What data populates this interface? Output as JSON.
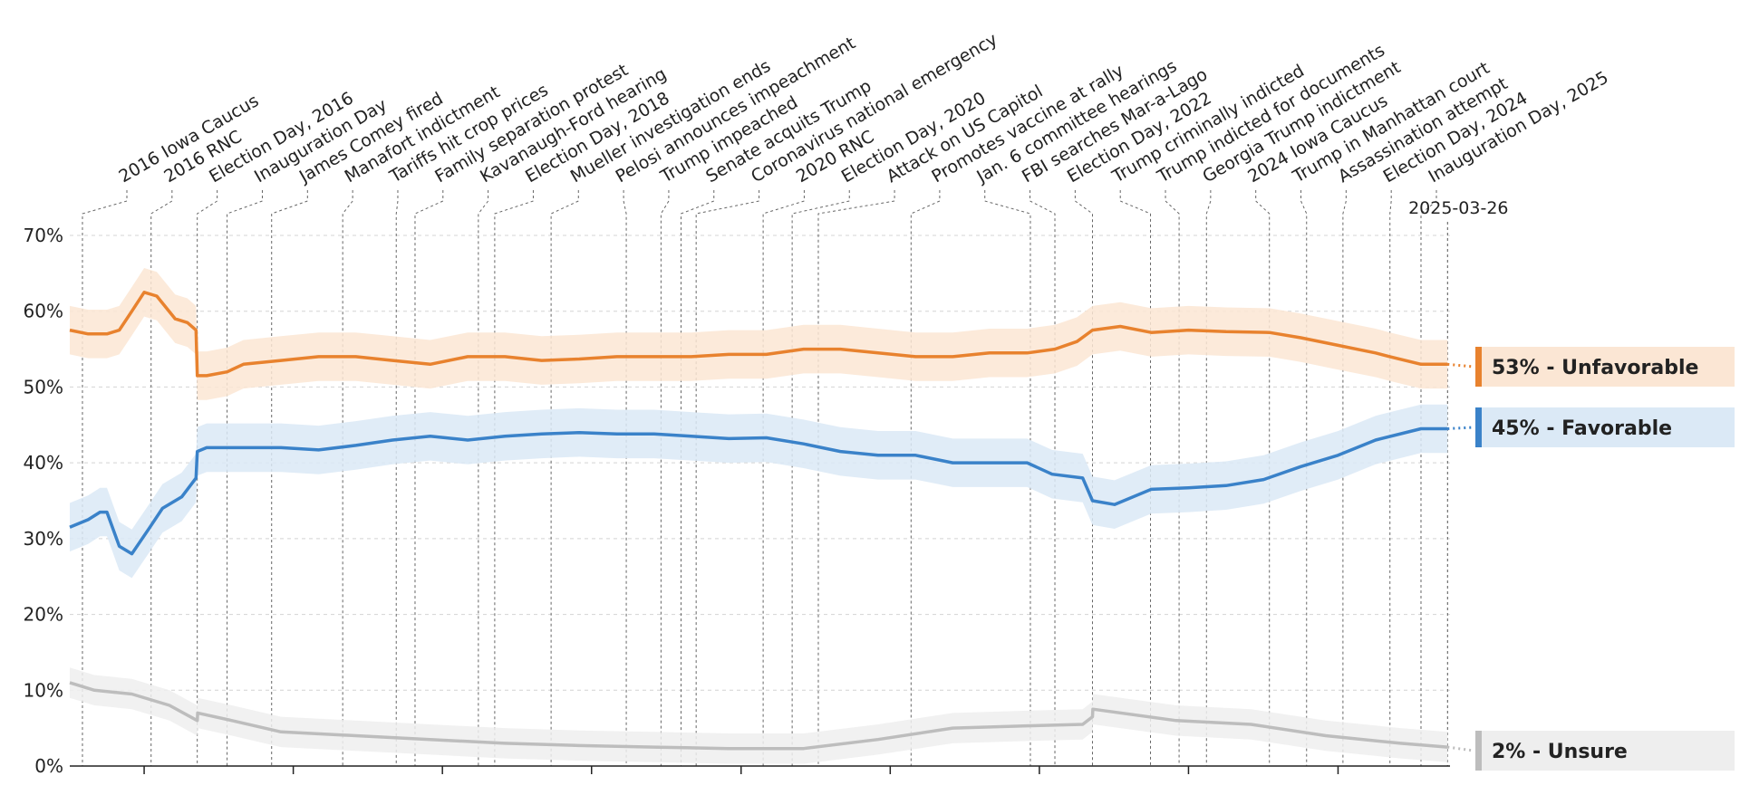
{
  "chart_data": {
    "type": "line",
    "title": "",
    "xlabel": "",
    "ylabel": "",
    "x_range": [
      "2016-01-01",
      "2025-04-01"
    ],
    "ylim": [
      0,
      70
    ],
    "y_ticks": [
      "0%",
      "10%",
      "20%",
      "30%",
      "40%",
      "50%",
      "60%",
      "70%"
    ],
    "grid": "horizontal dashed",
    "current_date": "2025-03-26",
    "series": [
      {
        "key": "unfavorable",
        "color": "#e8822e",
        "band_color": "#fbe6d4",
        "end_label": "53% - Unfavorable",
        "points": [
          [
            "2016-01-01",
            57.5
          ],
          [
            "2016-02-15",
            57
          ],
          [
            "2016-04-01",
            57
          ],
          [
            "2016-05-01",
            57.5
          ],
          [
            "2016-06-01",
            60
          ],
          [
            "2016-07-01",
            62.5
          ],
          [
            "2016-08-01",
            62
          ],
          [
            "2016-09-15",
            59
          ],
          [
            "2016-10-15",
            58.5
          ],
          [
            "2016-11-05",
            57.5
          ],
          [
            "2016-11-08",
            51.5
          ],
          [
            "2016-12-01",
            51.5
          ],
          [
            "2017-01-20",
            52
          ],
          [
            "2017-03-01",
            53
          ],
          [
            "2017-06-01",
            53.5
          ],
          [
            "2017-09-01",
            54
          ],
          [
            "2017-12-01",
            54
          ],
          [
            "2018-03-01",
            53.5
          ],
          [
            "2018-06-01",
            53
          ],
          [
            "2018-09-01",
            54
          ],
          [
            "2018-12-01",
            54
          ],
          [
            "2019-03-01",
            53.5
          ],
          [
            "2019-06-01",
            53.7
          ],
          [
            "2019-09-01",
            54
          ],
          [
            "2019-12-01",
            54
          ],
          [
            "2020-03-01",
            54
          ],
          [
            "2020-06-01",
            54.3
          ],
          [
            "2020-09-01",
            54.3
          ],
          [
            "2020-12-01",
            55
          ],
          [
            "2021-03-01",
            55
          ],
          [
            "2021-06-01",
            54.5
          ],
          [
            "2021-09-01",
            54
          ],
          [
            "2021-12-01",
            54
          ],
          [
            "2022-03-01",
            54.5
          ],
          [
            "2022-06-01",
            54.5
          ],
          [
            "2022-08-08",
            55
          ],
          [
            "2022-10-01",
            56
          ],
          [
            "2022-11-08",
            57.5
          ],
          [
            "2023-01-15",
            58
          ],
          [
            "2023-04-01",
            57.2
          ],
          [
            "2023-07-01",
            57.5
          ],
          [
            "2023-10-01",
            57.3
          ],
          [
            "2024-01-15",
            57.2
          ],
          [
            "2024-04-01",
            56.5
          ],
          [
            "2024-07-01",
            55.5
          ],
          [
            "2024-10-01",
            54.5
          ],
          [
            "2024-11-05",
            54
          ],
          [
            "2025-01-20",
            53
          ],
          [
            "2025-03-26",
            53
          ]
        ]
      },
      {
        "key": "favorable",
        "color": "#3a82c9",
        "band_color": "#dbe9f6",
        "end_label": "45% - Favorable",
        "points": [
          [
            "2016-01-01",
            31.5
          ],
          [
            "2016-02-15",
            32.5
          ],
          [
            "2016-03-15",
            33.5
          ],
          [
            "2016-04-01",
            33.5
          ],
          [
            "2016-05-01",
            29
          ],
          [
            "2016-06-01",
            28
          ],
          [
            "2016-07-15",
            31.5
          ],
          [
            "2016-08-15",
            34
          ],
          [
            "2016-10-01",
            35.5
          ],
          [
            "2016-11-05",
            38
          ],
          [
            "2016-11-08",
            41.5
          ],
          [
            "2016-12-01",
            42
          ],
          [
            "2017-03-01",
            42
          ],
          [
            "2017-06-01",
            42
          ],
          [
            "2017-09-01",
            41.7
          ],
          [
            "2017-12-01",
            42.3
          ],
          [
            "2018-03-01",
            43
          ],
          [
            "2018-06-01",
            43.5
          ],
          [
            "2018-09-01",
            43
          ],
          [
            "2018-12-01",
            43.5
          ],
          [
            "2019-03-01",
            43.8
          ],
          [
            "2019-06-01",
            44
          ],
          [
            "2019-09-01",
            43.8
          ],
          [
            "2019-12-01",
            43.8
          ],
          [
            "2020-03-01",
            43.5
          ],
          [
            "2020-06-01",
            43.2
          ],
          [
            "2020-09-01",
            43.3
          ],
          [
            "2020-12-01",
            42.5
          ],
          [
            "2021-03-01",
            41.5
          ],
          [
            "2021-06-01",
            41
          ],
          [
            "2021-09-01",
            41
          ],
          [
            "2021-12-01",
            40
          ],
          [
            "2022-03-01",
            40
          ],
          [
            "2022-06-01",
            40
          ],
          [
            "2022-08-01",
            38.5
          ],
          [
            "2022-10-15",
            38
          ],
          [
            "2022-11-08",
            35
          ],
          [
            "2023-01-01",
            34.5
          ],
          [
            "2023-04-01",
            36.5
          ],
          [
            "2023-07-01",
            36.7
          ],
          [
            "2023-10-01",
            37
          ],
          [
            "2024-01-01",
            37.8
          ],
          [
            "2024-04-01",
            39.5
          ],
          [
            "2024-07-01",
            41
          ],
          [
            "2024-10-01",
            43
          ],
          [
            "2025-01-20",
            44.5
          ],
          [
            "2025-03-26",
            44.5
          ]
        ]
      },
      {
        "key": "unsure",
        "color": "#bdbdbd",
        "band_color": "#eeeeee",
        "end_label": "2% - Unsure",
        "points": [
          [
            "2016-01-01",
            11
          ],
          [
            "2016-03-01",
            10
          ],
          [
            "2016-06-01",
            9.5
          ],
          [
            "2016-09-01",
            8
          ],
          [
            "2016-11-08",
            6
          ],
          [
            "2016-11-09",
            7
          ],
          [
            "2017-02-01",
            6
          ],
          [
            "2017-06-01",
            4.5
          ],
          [
            "2017-12-01",
            4
          ],
          [
            "2018-06-01",
            3.5
          ],
          [
            "2018-12-01",
            3
          ],
          [
            "2019-06-01",
            2.7
          ],
          [
            "2019-12-01",
            2.5
          ],
          [
            "2020-06-01",
            2.3
          ],
          [
            "2020-12-01",
            2.3
          ],
          [
            "2021-06-01",
            3.5
          ],
          [
            "2021-12-01",
            5
          ],
          [
            "2022-06-01",
            5.3
          ],
          [
            "2022-10-15",
            5.5
          ],
          [
            "2022-11-08",
            6.5
          ],
          [
            "2022-11-09",
            7.5
          ],
          [
            "2023-06-01",
            6
          ],
          [
            "2023-12-01",
            5.5
          ],
          [
            "2024-06-01",
            4
          ],
          [
            "2024-12-01",
            3
          ],
          [
            "2025-03-26",
            2.5
          ]
        ]
      }
    ],
    "annotations": [
      {
        "date": "2016-02-01",
        "label": "2016 Iowa Caucus"
      },
      {
        "date": "2016-07-18",
        "label": "2016 RNC"
      },
      {
        "date": "2016-11-08",
        "label": "Election Day, 2016"
      },
      {
        "date": "2017-01-20",
        "label": "Inauguration Day"
      },
      {
        "date": "2017-05-09",
        "label": "James Comey fired"
      },
      {
        "date": "2017-10-30",
        "label": "Manafort indictment"
      },
      {
        "date": "2018-03-10",
        "label": "Tariffs hit crop prices"
      },
      {
        "date": "2018-04-25",
        "label": "Family separation protest"
      },
      {
        "date": "2018-09-27",
        "label": "Kavanaugh-Ford hearing"
      },
      {
        "date": "2018-11-06",
        "label": "Election Day, 2018"
      },
      {
        "date": "2019-03-24",
        "label": "Mueller investigation ends"
      },
      {
        "date": "2019-09-24",
        "label": "Pelosi announces impeachment"
      },
      {
        "date": "2019-12-18",
        "label": "Trump impeached"
      },
      {
        "date": "2020-02-05",
        "label": "Senate acquits Trump"
      },
      {
        "date": "2020-03-13",
        "label": "Coronavirus national emergency"
      },
      {
        "date": "2020-08-24",
        "label": "2020 RNC"
      },
      {
        "date": "2020-11-03",
        "label": "Election Day, 2020"
      },
      {
        "date": "2021-01-06",
        "label": "Attack on US Capitol"
      },
      {
        "date": "2021-08-21",
        "label": "Promotes vaccine at rally"
      },
      {
        "date": "2022-06-09",
        "label": "Jan. 6 committee hearings"
      },
      {
        "date": "2022-08-08",
        "label": "FBI searches Mar-a-Lago"
      },
      {
        "date": "2022-11-08",
        "label": "Election Day, 2022"
      },
      {
        "date": "2023-03-30",
        "label": "Trump criminally indicted"
      },
      {
        "date": "2023-06-08",
        "label": "Trump indicted for documents"
      },
      {
        "date": "2023-08-14",
        "label": "Georgia Trump indictment"
      },
      {
        "date": "2024-01-15",
        "label": "2024 Iowa Caucus"
      },
      {
        "date": "2024-04-15",
        "label": "Trump in Manhattan court"
      },
      {
        "date": "2024-07-13",
        "label": "Assassination attempt"
      },
      {
        "date": "2024-11-05",
        "label": "Election Day, 2024"
      },
      {
        "date": "2025-01-20",
        "label": "Inauguration Day, 2025"
      }
    ]
  }
}
